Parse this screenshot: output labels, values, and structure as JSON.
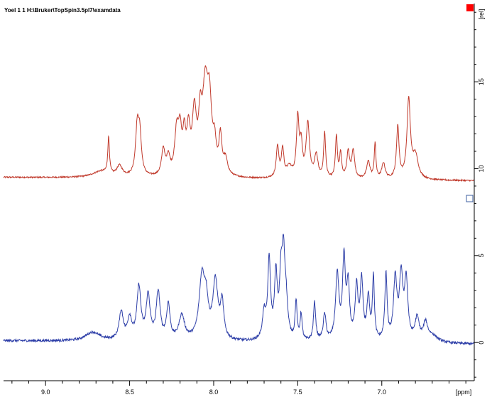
{
  "window": {
    "header": "Yoel  1  1  H:\\Bruker\\TopSpin3.5pl7\\examdata"
  },
  "colors": {
    "top_spectrum": "#c0392b",
    "bottom_spectrum": "#2e3fa8",
    "marker": "#ff0000"
  },
  "chart_data": {
    "type": "line",
    "title": "Yoel  1  1  H:\\Bruker\\TopSpin3.5pl7\\examdata",
    "xlabel": "[ppm]",
    "ylabel": "[rel]",
    "x_reversed": true,
    "xlim": [
      9.25,
      6.45
    ],
    "ylim": [
      -2.2,
      19.5
    ],
    "x_ticks": [
      9.0,
      8.5,
      8.0,
      7.5,
      7.0
    ],
    "x_tick_labels": [
      "9.0",
      "8.5",
      "8.0",
      "7.5",
      "7.0"
    ],
    "y_ticks": [
      0,
      5,
      10,
      15
    ],
    "y_tick_labels": [
      "0",
      "5",
      "10",
      "15"
    ],
    "grid": false,
    "series": [
      {
        "color": "#c0392b",
        "baseline": 9.5,
        "baseline_end": 9.3,
        "noise": 0.04,
        "peaks": [
          {
            "c": 8.67,
            "h": 0.35,
            "w": 0.06
          },
          {
            "c": 8.625,
            "h": 2.1,
            "w": 0.006
          },
          {
            "c": 8.56,
            "h": 0.6,
            "w": 0.02
          },
          {
            "c": 8.455,
            "h": 2.6,
            "w": 0.012
          },
          {
            "c": 8.44,
            "h": 2.2,
            "w": 0.012
          },
          {
            "c": 8.3,
            "h": 1.5,
            "w": 0.012
          },
          {
            "c": 8.27,
            "h": 1.0,
            "w": 0.012
          },
          {
            "c": 8.22,
            "h": 2.4,
            "w": 0.014
          },
          {
            "c": 8.2,
            "h": 2.2,
            "w": 0.012
          },
          {
            "c": 8.175,
            "h": 2.0,
            "w": 0.01
          },
          {
            "c": 8.15,
            "h": 2.3,
            "w": 0.012
          },
          {
            "c": 8.115,
            "h": 3.4,
            "w": 0.015
          },
          {
            "c": 8.08,
            "h": 2.6,
            "w": 0.012
          },
          {
            "c": 8.05,
            "h": 4.8,
            "w": 0.02
          },
          {
            "c": 8.025,
            "h": 3.5,
            "w": 0.015
          },
          {
            "c": 7.995,
            "h": 1.5,
            "w": 0.012
          },
          {
            "c": 7.96,
            "h": 2.1,
            "w": 0.01
          },
          {
            "c": 7.93,
            "h": 0.9,
            "w": 0.015
          },
          {
            "c": 7.62,
            "h": 1.8,
            "w": 0.009
          },
          {
            "c": 7.59,
            "h": 1.6,
            "w": 0.009
          },
          {
            "c": 7.55,
            "h": 0.6,
            "w": 0.02
          },
          {
            "c": 7.5,
            "h": 3.4,
            "w": 0.009
          },
          {
            "c": 7.48,
            "h": 1.8,
            "w": 0.009
          },
          {
            "c": 7.44,
            "h": 3.1,
            "w": 0.012
          },
          {
            "c": 7.39,
            "h": 1.3,
            "w": 0.012
          },
          {
            "c": 7.34,
            "h": 2.6,
            "w": 0.007
          },
          {
            "c": 7.27,
            "h": 2.4,
            "w": 0.007
          },
          {
            "c": 7.245,
            "h": 1.4,
            "w": 0.007
          },
          {
            "c": 7.2,
            "h": 1.5,
            "w": 0.01
          },
          {
            "c": 7.17,
            "h": 1.6,
            "w": 0.01
          },
          {
            "c": 7.08,
            "h": 1.0,
            "w": 0.012
          },
          {
            "c": 7.04,
            "h": 2.0,
            "w": 0.006
          },
          {
            "c": 6.99,
            "h": 0.9,
            "w": 0.012
          },
          {
            "c": 6.905,
            "h": 3.0,
            "w": 0.009
          },
          {
            "c": 6.84,
            "h": 4.5,
            "w": 0.012
          },
          {
            "c": 6.8,
            "h": 1.3,
            "w": 0.02
          }
        ]
      },
      {
        "color": "#2e3fa8",
        "baseline": 0.1,
        "baseline_end": -0.1,
        "noise": 0.07,
        "peaks": [
          {
            "c": 8.72,
            "h": 0.5,
            "w": 0.05
          },
          {
            "c": 8.55,
            "h": 1.6,
            "w": 0.015
          },
          {
            "c": 8.5,
            "h": 1.2,
            "w": 0.015
          },
          {
            "c": 8.445,
            "h": 3.0,
            "w": 0.014
          },
          {
            "c": 8.39,
            "h": 2.5,
            "w": 0.014
          },
          {
            "c": 8.33,
            "h": 2.7,
            "w": 0.014
          },
          {
            "c": 8.27,
            "h": 2.0,
            "w": 0.012
          },
          {
            "c": 8.19,
            "h": 1.4,
            "w": 0.02
          },
          {
            "c": 8.07,
            "h": 3.5,
            "w": 0.02
          },
          {
            "c": 8.045,
            "h": 1.8,
            "w": 0.015
          },
          {
            "c": 7.99,
            "h": 3.3,
            "w": 0.018
          },
          {
            "c": 7.95,
            "h": 2.0,
            "w": 0.012
          },
          {
            "c": 7.7,
            "h": 1.5,
            "w": 0.012
          },
          {
            "c": 7.67,
            "h": 4.5,
            "w": 0.01
          },
          {
            "c": 7.63,
            "h": 3.6,
            "w": 0.01
          },
          {
            "c": 7.6,
            "h": 3.2,
            "w": 0.01
          },
          {
            "c": 7.585,
            "h": 4.2,
            "w": 0.01
          },
          {
            "c": 7.57,
            "h": 2.0,
            "w": 0.012
          },
          {
            "c": 7.51,
            "h": 2.2,
            "w": 0.007
          },
          {
            "c": 7.48,
            "h": 1.5,
            "w": 0.007
          },
          {
            "c": 7.4,
            "h": 2.2,
            "w": 0.008
          },
          {
            "c": 7.34,
            "h": 1.5,
            "w": 0.01
          },
          {
            "c": 7.265,
            "h": 3.8,
            "w": 0.012
          },
          {
            "c": 7.225,
            "h": 4.6,
            "w": 0.01
          },
          {
            "c": 7.2,
            "h": 3.0,
            "w": 0.01
          },
          {
            "c": 7.15,
            "h": 3.0,
            "w": 0.01
          },
          {
            "c": 7.12,
            "h": 3.4,
            "w": 0.01
          },
          {
            "c": 7.08,
            "h": 2.4,
            "w": 0.01
          },
          {
            "c": 7.05,
            "h": 3.6,
            "w": 0.007
          },
          {
            "c": 6.975,
            "h": 3.8,
            "w": 0.008
          },
          {
            "c": 6.92,
            "h": 3.5,
            "w": 0.012
          },
          {
            "c": 6.885,
            "h": 3.6,
            "w": 0.012
          },
          {
            "c": 6.855,
            "h": 3.4,
            "w": 0.012
          },
          {
            "c": 6.79,
            "h": 1.3,
            "w": 0.015
          },
          {
            "c": 6.74,
            "h": 1.0,
            "w": 0.015
          },
          {
            "c": 6.7,
            "h": 0.4,
            "w": 0.04
          }
        ]
      }
    ]
  }
}
